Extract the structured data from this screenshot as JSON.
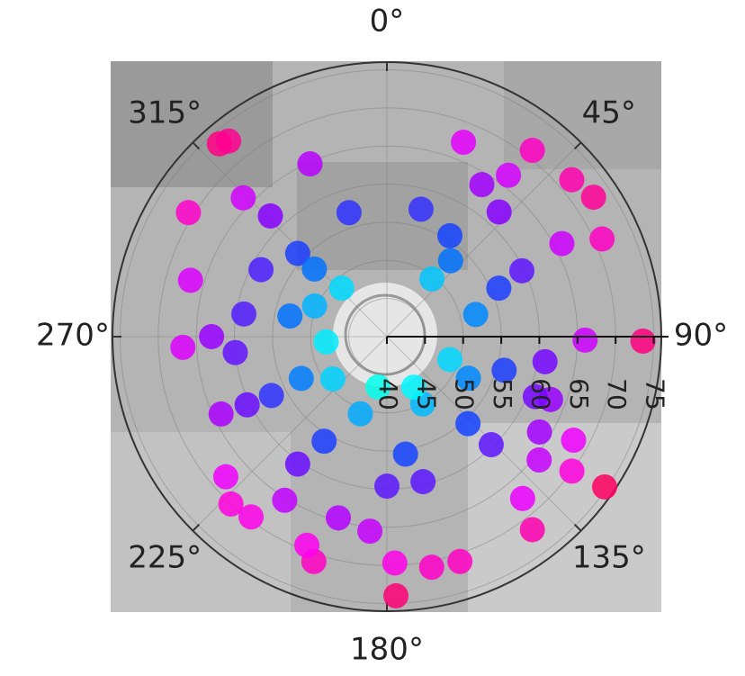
{
  "chart_data": {
    "type": "scatter-polar",
    "x": [
      319,
      321,
      91,
      124.6,
      178,
      56,
      49.7,
      302,
      286,
      267,
      38,
      21.5,
      65.6,
      91,
      119,
      126,
      140,
      143,
      162,
      169,
      178,
      198,
      201,
      223,
      217,
      229,
      336,
      314,
      245,
      129,
      111,
      195,
      185,
      212,
      62,
      37,
      316,
      279,
      264,
      244,
      215,
      180,
      166,
      136,
      112,
      99,
      64,
      42,
      32,
      343,
      15,
      270,
      122,
      298,
      243,
      211,
      171,
      137,
      106,
      66.6,
      32,
      313,
      282,
      244,
      199,
      152,
      117,
      76,
      40,
      313,
      265,
      232,
      190,
      152,
      110,
      38,
      317,
      293
    ],
    "values": [
      73.5,
      73,
      73.6,
      74.7,
      74,
      72.7,
      71.8,
      70.7,
      66.8,
      66.8,
      71,
      67.4,
      71,
      66,
      68,
      70,
      67.7,
      71.7,
      71,
      70.8,
      69.7,
      71,
      69.3,
      70,
      69.6,
      68,
      64.8,
      66.2,
      64,
      65.7,
      63,
      64.6,
      65.6,
      65.3,
      66,
      66.5,
      62,
      59,
      60,
      60.4,
      60.4,
      59.6,
      59.6,
      59.7,
      61,
      61,
      59.7,
      62,
      63.5,
      57,
      57.3,
      63,
      63.6,
      58.7,
      57,
      56,
      55.6,
      55.6,
      56,
      56,
      55.6,
      56,
      53,
      52.5,
      50.7,
      50,
      52,
      52,
      53,
      53,
      48,
      49,
      46.7,
      47.5,
      48.8,
      49.6,
      48.7,
      50.3
    ],
    "colorscale": [
      "#00ff00",
      "#00ffff",
      "#0050ff",
      "#8000ff",
      "#ff00ff",
      "#ff0040"
    ],
    "ylim": [
      40,
      76
    ],
    "yticks": [
      40,
      45,
      50,
      55,
      60,
      65,
      70,
      75
    ],
    "xticks": [
      {
        "value": 0,
        "label": "0°"
      },
      {
        "value": 45,
        "label": "45°"
      },
      {
        "value": 90,
        "label": "90°"
      },
      {
        "value": 135,
        "label": "135°"
      },
      {
        "value": 180,
        "label": "180°"
      },
      {
        "value": 225,
        "label": "225°"
      },
      {
        "value": 270,
        "label": "270°"
      },
      {
        "value": 315,
        "label": "315°"
      }
    ],
    "grid": true
  }
}
